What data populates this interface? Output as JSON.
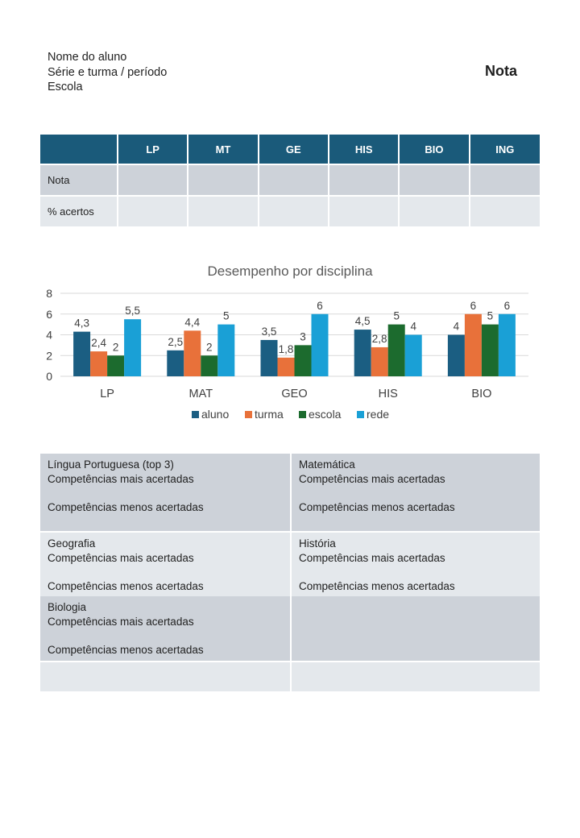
{
  "header": {
    "student_name": "Nome do aluno",
    "class_period": "Série e turma / período",
    "school": "Escola",
    "grade_label": "Nota"
  },
  "scores_table": {
    "columns": [
      "",
      "LP",
      "MT",
      "GE",
      "HIS",
      "BIO",
      "ING"
    ],
    "rows": [
      {
        "label": "Nota",
        "cells": [
          "",
          "",
          "",
          "",
          "",
          ""
        ]
      },
      {
        "label": "% acertos",
        "cells": [
          "",
          "",
          "",
          "",
          "",
          ""
        ]
      }
    ]
  },
  "colors": {
    "header_blue": "#1a5a7a",
    "row_dark": "#cdd2d9",
    "row_light": "#e4e8ec"
  },
  "chart_data": {
    "type": "bar",
    "title": "Desempenho por disciplina",
    "categories": [
      "LP",
      "MAT",
      "GEO",
      "HIS",
      "BIO"
    ],
    "series": [
      {
        "name": "aluno",
        "color": "#1b5e82",
        "values": [
          4.3,
          2.5,
          3.5,
          4.5,
          4
        ],
        "labels": [
          "4,3",
          "2,5",
          "3,5",
          "4,5",
          "4"
        ]
      },
      {
        "name": "turma",
        "color": "#e8713a",
        "values": [
          2.4,
          4.4,
          1.8,
          2.8,
          6
        ],
        "labels": [
          "2,4",
          "4,4",
          "1,8",
          "2,8",
          "6"
        ]
      },
      {
        "name": "escola",
        "color": "#1c6b2e",
        "values": [
          2,
          2,
          3,
          5,
          5
        ],
        "labels": [
          "2",
          "2",
          "3",
          "5",
          "5"
        ]
      },
      {
        "name": "rede",
        "color": "#1aa0d6",
        "values": [
          5.5,
          5,
          6,
          4,
          6
        ],
        "labels": [
          "5,5",
          "5",
          "6",
          "4",
          "6"
        ]
      }
    ],
    "ylim": [
      0,
      8
    ],
    "yticks": [
      0,
      2,
      4,
      6,
      8
    ],
    "grid": true,
    "legend": "bottom"
  },
  "competencies": {
    "most_label": "Competências mais acertadas",
    "least_label": "Competências menos acertadas",
    "subjects": [
      {
        "title": "Língua Portuguesa (top 3)"
      },
      {
        "title": "Matemática"
      },
      {
        "title": "Geografia"
      },
      {
        "title": "História"
      },
      {
        "title": "Biologia"
      }
    ]
  }
}
